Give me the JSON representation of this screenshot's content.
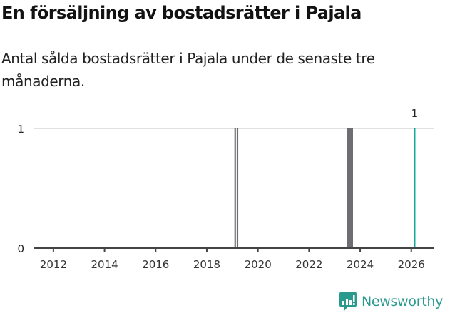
{
  "title": "En försäljning av bostadsrätter i Pajala",
  "subtitle": "Antal sålda bostadsrätter i Pajala under de senaste tre månaderna.",
  "brand": {
    "name": "Newsworthy",
    "icon": "newsworthy-chart-bubble-icon",
    "color": "#2b9a8e"
  },
  "colors": {
    "bar_default": "#6e6d72",
    "bar_highlight": "#13a898",
    "grid": "#e0e0e0",
    "axis": "#444444"
  },
  "chart_data": {
    "type": "bar",
    "title": "En försäljning av bostadsrätter i Pajala",
    "subtitle": "Antal sålda bostadsrätter i Pajala under de senaste tre månaderna.",
    "xlabel": "",
    "ylabel": "",
    "x_ticks": [
      "2012",
      "2014",
      "2016",
      "2018",
      "2020",
      "2022",
      "2024",
      "2026"
    ],
    "y_ticks": [
      "0",
      "1"
    ],
    "ylim": [
      0,
      1
    ],
    "xlim": [
      2011.25,
      2026.9
    ],
    "grid": true,
    "legend": null,
    "series": [
      {
        "name": "Sålda bostadsrätter",
        "points": [
          {
            "x_start": 2019.08,
            "x_end": 2019.14,
            "value": 1,
            "highlight": false
          },
          {
            "x_start": 2019.17,
            "x_end": 2019.23,
            "value": 1,
            "highlight": false
          },
          {
            "x_start": 2023.47,
            "x_end": 2023.72,
            "value": 1,
            "highlight": false
          },
          {
            "x_start": 2026.1,
            "x_end": 2026.16,
            "value": 1,
            "highlight": true
          }
        ]
      }
    ],
    "annotations": [
      {
        "x": 2026.13,
        "text": "1"
      }
    ]
  }
}
